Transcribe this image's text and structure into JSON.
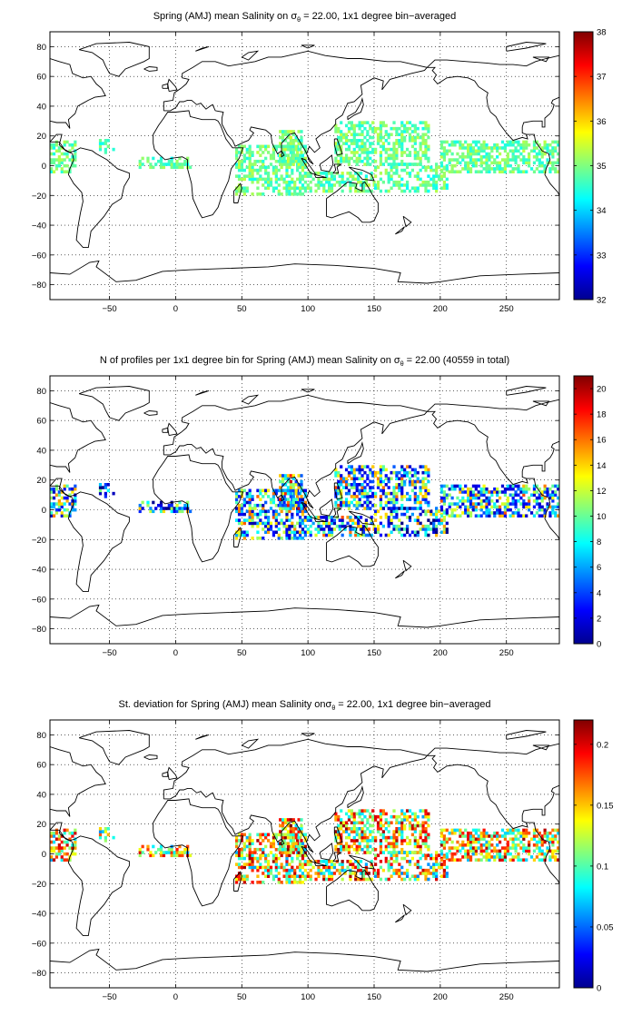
{
  "figure": {
    "panels": [
      {
        "id": "salinity",
        "title": "Spring (AMJ) mean Salinity on σθ = 22.00, 1x1 degree bin−averaged",
        "title_parts": [
          "Spring (AMJ) mean Salinity on ",
          "σ",
          "θ",
          " = 22.00, 1x1 degree bin−averaged"
        ],
        "colorbar": {
          "min": 32,
          "max": 38,
          "ticks": [
            32,
            33,
            34,
            35,
            36,
            37,
            38
          ]
        },
        "typical_value": 34.8
      },
      {
        "id": "count",
        "title": "N of profiles per 1x1 degree bin for Spring (AMJ) mean Salinity on σθ = 22.00 (40559 in total)",
        "title_parts": [
          "N of profiles per 1x1 degree bin for Spring (AMJ) mean Salinity on ",
          "σ",
          "θ",
          " = 22.00 (40559 in total)"
        ],
        "colorbar": {
          "min": 0,
          "max": 21,
          "ticks": [
            0,
            2,
            4,
            6,
            8,
            10,
            12,
            14,
            16,
            18,
            20
          ]
        },
        "typical_value": 6
      },
      {
        "id": "stdev",
        "title": "St. deviation for Spring (AMJ) mean Salinity on σθ = 22.00, 1x1 degree bin−averaged",
        "title_parts": [
          "St. deviation for Spring (AMJ) mean Salinity on",
          "σ",
          "θ",
          " = 22.00, 1x1 degree bin−averaged"
        ],
        "colorbar": {
          "min": 0,
          "max": 0.22,
          "ticks": [
            0,
            0.05,
            0.1,
            0.15,
            0.2
          ]
        },
        "typical_value": 0.12
      }
    ],
    "x_axis": {
      "range": [
        -95,
        290
      ],
      "ticks": [
        -50,
        0,
        50,
        100,
        150,
        200,
        250
      ]
    },
    "y_axis": {
      "range": [
        -90,
        90
      ],
      "ticks": [
        -80,
        -60,
        -40,
        -20,
        0,
        20,
        40,
        60,
        80
      ]
    },
    "grid": "dotted",
    "colormap": "jet"
  },
  "chart_data": {
    "type": "heatmap",
    "grid_resolution": "1x1 degree",
    "x_range": [
      -95,
      290
    ],
    "y_range": [
      -90,
      90
    ],
    "data_regions": [
      {
        "name": "East Pacific / Central America",
        "lon": [
          -95,
          -75
        ],
        "lat": [
          -5,
          15
        ]
      },
      {
        "name": "Tropical Atlantic",
        "lon": [
          -58,
          -48
        ],
        "lat": [
          8,
          16
        ]
      },
      {
        "name": "Gulf of Guinea",
        "lon": [
          -28,
          10
        ],
        "lat": [
          -2,
          5
        ]
      },
      {
        "name": "Indian Ocean",
        "lon": [
          45,
          120
        ],
        "lat": [
          -20,
          22
        ]
      },
      {
        "name": "Western Pacific / Indonesia",
        "lon": [
          100,
          200
        ],
        "lat": [
          -18,
          28
        ]
      },
      {
        "name": "Central Pacific",
        "lon": [
          200,
          290
        ],
        "lat": [
          -5,
          15
        ]
      }
    ],
    "panels": [
      {
        "name": "mean Salinity",
        "range": [
          32,
          38
        ],
        "typical_range": [
          34,
          35.5
        ]
      },
      {
        "name": "N of profiles",
        "range": [
          0,
          21
        ],
        "total": 40559
      },
      {
        "name": "St. deviation",
        "range": [
          0,
          0.22
        ]
      }
    ]
  }
}
